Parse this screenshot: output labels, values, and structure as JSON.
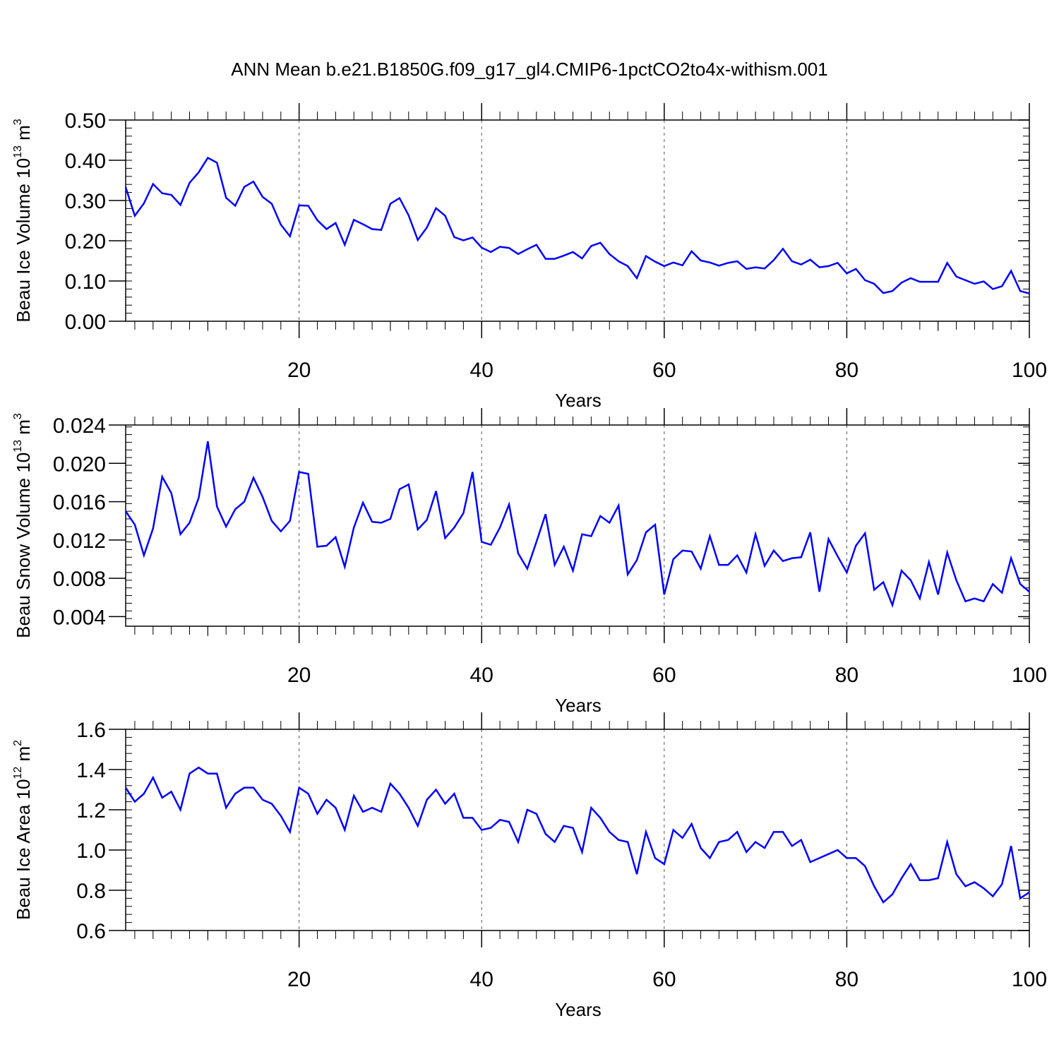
{
  "figure": {
    "title": "ANN Mean b.e21.B1850G.f09_g17_gl4.CMIP6-1pctCO2to4x-withism.001"
  },
  "style": {
    "line_color": "#0000ff",
    "grid_color": "#555555",
    "axis_color": "#000000"
  },
  "chart_data": [
    {
      "type": "line",
      "xlabel": "Years",
      "ylabel_parts": [
        "Beau Ice Volume 10",
        "13",
        " m",
        "3"
      ],
      "xlim": [
        1,
        100
      ],
      "ylim": [
        0,
        0.5
      ],
      "xticks": [
        20,
        40,
        60,
        80,
        100
      ],
      "xtick_labels": [
        "20",
        "40",
        "60",
        "80",
        "100"
      ],
      "yticks": [
        0,
        0.1,
        0.2,
        0.3,
        0.4,
        0.5
      ],
      "ytick_labels": [
        "0.00",
        "0.10",
        "0.20",
        "0.30",
        "0.40",
        "0.50"
      ],
      "y_minor_step": 0.02,
      "grid": "vertical-dashed",
      "x": [
        1,
        2,
        3,
        4,
        5,
        6,
        7,
        8,
        9,
        10,
        11,
        12,
        13,
        14,
        15,
        16,
        17,
        18,
        19,
        20,
        21,
        22,
        23,
        24,
        25,
        26,
        27,
        28,
        29,
        30,
        31,
        32,
        33,
        34,
        35,
        36,
        37,
        38,
        39,
        40,
        41,
        42,
        43,
        44,
        45,
        46,
        47,
        48,
        49,
        50,
        51,
        52,
        53,
        54,
        55,
        56,
        57,
        58,
        59,
        60,
        61,
        62,
        63,
        64,
        65,
        66,
        67,
        68,
        69,
        70,
        71,
        72,
        73,
        74,
        75,
        76,
        77,
        78,
        79,
        80,
        81,
        82,
        83,
        84,
        85,
        86,
        87,
        88,
        89,
        90,
        91,
        92,
        93,
        94,
        95,
        96,
        97,
        98,
        99,
        100
      ],
      "y": [
        0.333,
        0.262,
        0.293,
        0.341,
        0.318,
        0.314,
        0.289,
        0.344,
        0.37,
        0.406,
        0.394,
        0.307,
        0.287,
        0.334,
        0.347,
        0.309,
        0.292,
        0.24,
        0.211,
        0.288,
        0.287,
        0.251,
        0.229,
        0.244,
        0.19,
        0.252,
        0.241,
        0.229,
        0.227,
        0.292,
        0.306,
        0.263,
        0.202,
        0.233,
        0.281,
        0.262,
        0.209,
        0.201,
        0.208,
        0.183,
        0.172,
        0.185,
        0.182,
        0.167,
        0.179,
        0.19,
        0.155,
        0.155,
        0.163,
        0.172,
        0.156,
        0.187,
        0.195,
        0.167,
        0.149,
        0.137,
        0.107,
        0.162,
        0.148,
        0.137,
        0.146,
        0.139,
        0.174,
        0.151,
        0.146,
        0.138,
        0.145,
        0.149,
        0.13,
        0.134,
        0.131,
        0.152,
        0.18,
        0.149,
        0.141,
        0.153,
        0.134,
        0.137,
        0.145,
        0.119,
        0.13,
        0.102,
        0.093,
        0.07,
        0.075,
        0.096,
        0.107,
        0.098,
        0.098,
        0.098,
        0.145,
        0.111,
        0.102,
        0.093,
        0.099,
        0.08,
        0.087,
        0.125,
        0.075,
        0.069
      ]
    },
    {
      "type": "line",
      "xlabel": "Years",
      "ylabel_parts": [
        "Beau Snow Volume 10",
        "13",
        " m",
        "3"
      ],
      "xlim": [
        1,
        100
      ],
      "ylim": [
        0.003,
        0.024
      ],
      "xticks": [
        20,
        40,
        60,
        80,
        100
      ],
      "xtick_labels": [
        "20",
        "40",
        "60",
        "80",
        "100"
      ],
      "yticks": [
        0.004,
        0.008,
        0.012,
        0.016,
        0.02,
        0.024
      ],
      "ytick_labels": [
        "0.004",
        "0.008",
        "0.012",
        "0.016",
        "0.020",
        "0.024"
      ],
      "y_minor_step": 0.0008,
      "grid": "vertical-dashed",
      "x": [
        1,
        2,
        3,
        4,
        5,
        6,
        7,
        8,
        9,
        10,
        11,
        12,
        13,
        14,
        15,
        16,
        17,
        18,
        19,
        20,
        21,
        22,
        23,
        24,
        25,
        26,
        27,
        28,
        29,
        30,
        31,
        32,
        33,
        34,
        35,
        36,
        37,
        38,
        39,
        40,
        41,
        42,
        43,
        44,
        45,
        46,
        47,
        48,
        49,
        50,
        51,
        52,
        53,
        54,
        55,
        56,
        57,
        58,
        59,
        60,
        61,
        62,
        63,
        64,
        65,
        66,
        67,
        68,
        69,
        70,
        71,
        72,
        73,
        74,
        75,
        76,
        77,
        78,
        79,
        80,
        81,
        82,
        83,
        84,
        85,
        86,
        87,
        88,
        89,
        90,
        91,
        92,
        93,
        94,
        95,
        96,
        97,
        98,
        99,
        100
      ],
      "y": [
        0.015,
        0.0136,
        0.0104,
        0.0132,
        0.0186,
        0.0169,
        0.0126,
        0.0138,
        0.0164,
        0.0223,
        0.0155,
        0.0134,
        0.0152,
        0.016,
        0.0185,
        0.0165,
        0.014,
        0.0129,
        0.014,
        0.0191,
        0.0189,
        0.0113,
        0.0114,
        0.0123,
        0.0092,
        0.0133,
        0.0159,
        0.0139,
        0.0138,
        0.0142,
        0.0173,
        0.0178,
        0.0131,
        0.0141,
        0.0171,
        0.0122,
        0.0133,
        0.0148,
        0.0191,
        0.0118,
        0.0115,
        0.0133,
        0.0157,
        0.0106,
        0.009,
        0.0118,
        0.0147,
        0.0094,
        0.0113,
        0.0088,
        0.0126,
        0.0124,
        0.0145,
        0.0138,
        0.0156,
        0.0084,
        0.0099,
        0.0128,
        0.0136,
        0.0063,
        0.01,
        0.0109,
        0.0108,
        0.009,
        0.0124,
        0.0094,
        0.0094,
        0.0104,
        0.0086,
        0.0126,
        0.0093,
        0.0109,
        0.0098,
        0.0101,
        0.0102,
        0.0128,
        0.0066,
        0.0121,
        0.0103,
        0.0086,
        0.0114,
        0.0127,
        0.0068,
        0.0076,
        0.0052,
        0.0088,
        0.0078,
        0.0059,
        0.0097,
        0.0063,
        0.0107,
        0.0078,
        0.0056,
        0.0059,
        0.0056,
        0.0074,
        0.0065,
        0.0101,
        0.0074,
        0.0066
      ]
    },
    {
      "type": "line",
      "xlabel": "Years",
      "ylabel_parts": [
        "Beau Ice Area 10",
        "12",
        " m",
        "2"
      ],
      "xlim": [
        1,
        100
      ],
      "ylim": [
        0.6,
        1.6
      ],
      "xticks": [
        20,
        40,
        60,
        80,
        100
      ],
      "xtick_labels": [
        "20",
        "40",
        "60",
        "80",
        "100"
      ],
      "yticks": [
        0.6,
        0.8,
        1.0,
        1.2,
        1.4,
        1.6
      ],
      "ytick_labels": [
        "0.6",
        "0.8",
        "1.0",
        "1.2",
        "1.4",
        "1.6"
      ],
      "y_minor_step": 0.04,
      "grid": "vertical-dashed",
      "x": [
        1,
        2,
        3,
        4,
        5,
        6,
        7,
        8,
        9,
        10,
        11,
        12,
        13,
        14,
        15,
        16,
        17,
        18,
        19,
        20,
        21,
        22,
        23,
        24,
        25,
        26,
        27,
        28,
        29,
        30,
        31,
        32,
        33,
        34,
        35,
        36,
        37,
        38,
        39,
        40,
        41,
        42,
        43,
        44,
        45,
        46,
        47,
        48,
        49,
        50,
        51,
        52,
        53,
        54,
        55,
        56,
        57,
        58,
        59,
        60,
        61,
        62,
        63,
        64,
        65,
        66,
        67,
        68,
        69,
        70,
        71,
        72,
        73,
        74,
        75,
        76,
        77,
        78,
        79,
        80,
        81,
        82,
        83,
        84,
        85,
        86,
        87,
        88,
        89,
        90,
        91,
        92,
        93,
        94,
        95,
        96,
        97,
        98,
        99,
        100
      ],
      "y": [
        1.31,
        1.24,
        1.28,
        1.36,
        1.26,
        1.29,
        1.2,
        1.38,
        1.41,
        1.38,
        1.38,
        1.21,
        1.28,
        1.31,
        1.31,
        1.25,
        1.23,
        1.17,
        1.09,
        1.31,
        1.28,
        1.18,
        1.25,
        1.21,
        1.1,
        1.27,
        1.19,
        1.21,
        1.19,
        1.33,
        1.28,
        1.21,
        1.12,
        1.25,
        1.3,
        1.23,
        1.28,
        1.16,
        1.16,
        1.1,
        1.11,
        1.15,
        1.14,
        1.04,
        1.2,
        1.18,
        1.08,
        1.04,
        1.12,
        1.11,
        0.99,
        1.21,
        1.16,
        1.09,
        1.05,
        1.04,
        0.88,
        1.09,
        0.96,
        0.93,
        1.1,
        1.06,
        1.13,
        1.01,
        0.96,
        1.04,
        1.05,
        1.09,
        0.99,
        1.04,
        1.01,
        1.09,
        1.09,
        1.02,
        1.05,
        0.94,
        0.96,
        0.98,
        1.0,
        0.96,
        0.96,
        0.92,
        0.82,
        0.74,
        0.78,
        0.86,
        0.93,
        0.85,
        0.85,
        0.86,
        1.04,
        0.88,
        0.82,
        0.84,
        0.81,
        0.77,
        0.83,
        1.02,
        0.76,
        0.79
      ]
    }
  ]
}
